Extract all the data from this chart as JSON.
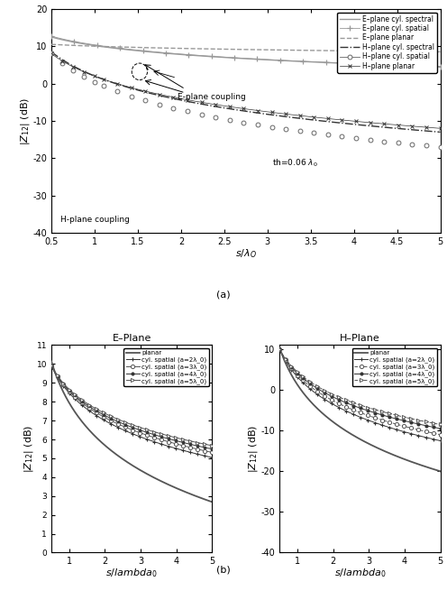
{
  "fig_background": "#ffffff",
  "panel_a": {
    "xlim": [
      0.5,
      5.0
    ],
    "ylim": [
      -40,
      20
    ],
    "xlabel": "s/λ_O",
    "ylabel": "|Z_{12}| (dB)",
    "xticks": [
      0.5,
      1.0,
      1.5,
      2.0,
      2.5,
      3.0,
      3.5,
      4.0,
      4.5,
      5.0
    ],
    "xtick_labels": [
      "0.5",
      "1",
      "1.5",
      "2",
      "2.5",
      "3",
      "3.5",
      "4",
      "4.5",
      "5"
    ],
    "yticks": [
      -40,
      -30,
      -20,
      -10,
      0,
      10,
      20
    ],
    "ytick_labels": [
      "-40",
      "-30",
      "-20",
      "-10",
      "0",
      "10",
      "20"
    ],
    "legend_entries": [
      "E–plane cyl. spectral",
      "E–plane cyl. spatial",
      "E–plane planar",
      "H–plane cyl. spectral",
      "H–plane cyl. spatial",
      "H–plane planar"
    ],
    "text_eplane": "E-plane coupling",
    "text_hplane": "H-plane coupling",
    "text_th": "th=0.06 λ_0",
    "label": "(a)"
  },
  "panel_b_left": {
    "title": "E–Plane",
    "xlim": [
      0.5,
      5.0
    ],
    "ylim": [
      0,
      11
    ],
    "xlabel": "s/lambda_0",
    "ylabel": "|Z_{12}| (dB)",
    "yticks": [
      0,
      1,
      2,
      3,
      4,
      5,
      6,
      7,
      8,
      9,
      10,
      11
    ],
    "ytick_labels": [
      "0",
      "1",
      "2",
      "3",
      "4",
      "5",
      "6",
      "7",
      "8",
      "9",
      "10",
      "11"
    ],
    "xticks": [
      1,
      2,
      3,
      4,
      5
    ],
    "xtick_labels": [
      "1",
      "2",
      "3",
      "4",
      "5"
    ],
    "legend_entries": [
      "planar",
      "cyl. spatial (a=2λ_0)",
      "cyl. spatial (a=3λ_0)",
      "cyl. spatial (a=4λ_0)",
      "cyl. spatial (a=5λ_0)"
    ]
  },
  "panel_b_right": {
    "title": "H–Plane",
    "xlim": [
      0.5,
      5.0
    ],
    "ylim": [
      -40,
      11
    ],
    "xlabel": "s/lambda_0",
    "ylabel": "|Z_{12}| (dB)",
    "yticks": [
      -40,
      -30,
      -20,
      -10,
      0,
      10
    ],
    "ytick_labels": [
      "-40",
      "-30",
      "-20",
      "-10",
      "0",
      "10"
    ],
    "xticks": [
      1,
      2,
      3,
      4,
      5
    ],
    "xtick_labels": [
      "1",
      "2",
      "3",
      "4",
      "5"
    ],
    "legend_entries": [
      "planar",
      "cyl. spatial (a=2λ_0)",
      "cyl. spatial (a=3λ_0)",
      "cyl. spatial (a=4λ_0)",
      "cyl. spatial (a=5λ_0)"
    ]
  },
  "label_b": "(b)"
}
